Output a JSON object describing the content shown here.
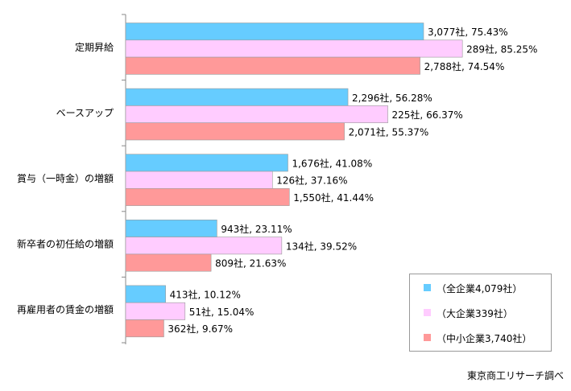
{
  "chart_data": {
    "type": "bar",
    "orientation": "horizontal",
    "title": "",
    "xlabel": "",
    "ylabel": "",
    "xlim": [
      0,
      100
    ],
    "grid": false,
    "legend_position": "bottom-right",
    "categories": [
      "定期昇給",
      "ベースアップ",
      "賞与（一時金）の増額",
      "新卒者の初任給の増額",
      "再雇用者の賃金の増額"
    ],
    "series": [
      {
        "name": "（全企業4,079社）",
        "color": "#66CCFF",
        "values": [
          75.43,
          56.28,
          41.08,
          23.11,
          10.12
        ],
        "labels": [
          "3,077社, 75.43%",
          "2,296社, 56.28%",
          "1,676社, 41.08%",
          "943社, 23.11%",
          "413社, 10.12%"
        ]
      },
      {
        "name": "（大企業339社）",
        "color": "#FFCCFF",
        "values": [
          85.25,
          66.37,
          37.16,
          39.52,
          15.04
        ],
        "labels": [
          "289社, 85.25%",
          "225社, 66.37%",
          "126社, 37.16%",
          "134社, 39.52%",
          "51社, 15.04%"
        ]
      },
      {
        "name": "（中小企業3,740社）",
        "color": "#FF9999",
        "values": [
          74.54,
          55.37,
          41.44,
          21.63,
          9.67
        ],
        "labels": [
          "2,788社, 74.54%",
          "2,071社, 55.37%",
          "1,550社, 41.44%",
          "809社, 21.63%",
          "362社, 9.67%"
        ]
      }
    ],
    "source": "東京商工リサーチ調べ"
  }
}
